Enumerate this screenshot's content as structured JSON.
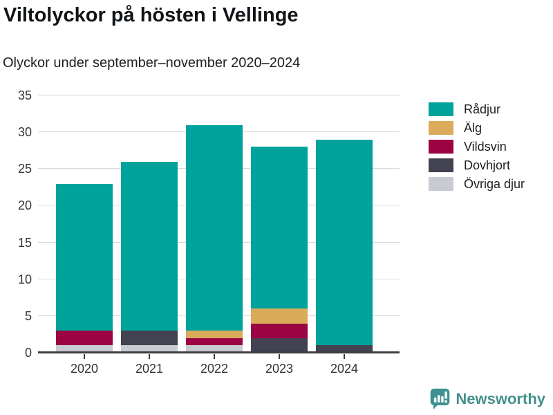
{
  "title": "Viltolyckor på hösten i Vellinge",
  "subtitle": "Olyckor under september–november 2020–2024",
  "chart_data": {
    "type": "bar",
    "stacked": true,
    "title": "Viltolyckor på hösten i Vellinge",
    "subtitle": "Olyckor under september–november 2020–2024",
    "categories": [
      "2020",
      "2021",
      "2022",
      "2023",
      "2024"
    ],
    "series": [
      {
        "name": "Rådjur",
        "color": "#00a39b",
        "values": [
          20,
          23,
          28,
          22,
          28
        ]
      },
      {
        "name": "Älg",
        "color": "#d9ab5b",
        "values": [
          0,
          0,
          1,
          2,
          0
        ]
      },
      {
        "name": "Vildsvin",
        "color": "#9b0342",
        "values": [
          2,
          0,
          1,
          2,
          0
        ]
      },
      {
        "name": "Dovhjort",
        "color": "#424250",
        "values": [
          0,
          2,
          0,
          2,
          1
        ]
      },
      {
        "name": "Övriga djur",
        "color": "#c9cbd3",
        "values": [
          1,
          1,
          1,
          0,
          0
        ]
      }
    ],
    "stack_order_bottom_to_top": [
      "Övriga djur",
      "Dovhjort",
      "Vildsvin",
      "Älg",
      "Rådjur"
    ],
    "totals": [
      23,
      26,
      31,
      28,
      29
    ],
    "xlabel": "",
    "ylabel": "",
    "ylim": [
      0,
      35
    ],
    "yticks": [
      0,
      5,
      10,
      15,
      20,
      25,
      30,
      35
    ],
    "grid": true,
    "legend_position": "right"
  },
  "legend": {
    "items": [
      {
        "label": "Rådjur",
        "color": "#00a39b"
      },
      {
        "label": "Älg",
        "color": "#d9ab5b"
      },
      {
        "label": "Vildsvin",
        "color": "#9b0342"
      },
      {
        "label": "Dovhjort",
        "color": "#424250"
      },
      {
        "label": "Övriga djur",
        "color": "#c9cbd3"
      }
    ]
  },
  "footer": {
    "brand": "Newsworthy",
    "logo_icon": "bar-chart-speech-bubble-icon",
    "brand_color": "#43908d",
    "logo_fill": "#3e918e"
  },
  "colors": {
    "background": "#ffffff",
    "gridline": "#d9d9d9",
    "axis_line": "#3b3d42",
    "axis_text": "#33363a",
    "title_text": "#111417"
  }
}
